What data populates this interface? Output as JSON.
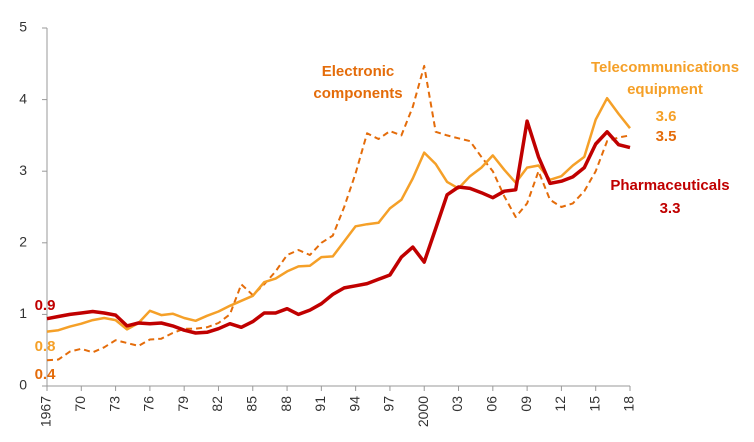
{
  "chart_data": {
    "type": "line",
    "x": [
      1967,
      1968,
      1969,
      1970,
      1971,
      1972,
      1973,
      1974,
      1975,
      1976,
      1977,
      1978,
      1979,
      1980,
      1981,
      1982,
      1983,
      1984,
      1985,
      1986,
      1987,
      1988,
      1989,
      1990,
      1991,
      1992,
      1993,
      1994,
      1995,
      1996,
      1997,
      1998,
      1999,
      2000,
      2001,
      2002,
      2003,
      2004,
      2005,
      2006,
      2007,
      2008,
      2009,
      2010,
      2011,
      2012,
      2013,
      2014,
      2015,
      2016,
      2017,
      2018
    ],
    "series": [
      {
        "name": "Electronic components",
        "color": "#e46c0a",
        "dashed": true,
        "values": [
          0.36,
          0.37,
          0.48,
          0.52,
          0.47,
          0.54,
          0.64,
          0.6,
          0.56,
          0.65,
          0.66,
          0.74,
          0.8,
          0.8,
          0.82,
          0.88,
          1.0,
          1.42,
          1.27,
          1.42,
          1.6,
          1.83,
          1.9,
          1.83,
          2.0,
          2.1,
          2.5,
          2.97,
          3.53,
          3.45,
          3.56,
          3.5,
          3.9,
          4.47,
          3.55,
          3.5,
          3.46,
          3.42,
          3.2,
          3.0,
          2.65,
          2.36,
          2.55,
          3.0,
          2.6,
          2.5,
          2.55,
          2.72,
          3.0,
          3.42,
          3.47,
          3.5
        ],
        "value_labels": [
          "0.4",
          null,
          null,
          null,
          null,
          null,
          null,
          null,
          null,
          null,
          null,
          null,
          null,
          null,
          null,
          null,
          null,
          null,
          null,
          null,
          null,
          null,
          null,
          null,
          null,
          null,
          null,
          null,
          null,
          null,
          null,
          null,
          null,
          null,
          null,
          null,
          null,
          null,
          null,
          null,
          null,
          null,
          null,
          null,
          null,
          null,
          null,
          null,
          null,
          null,
          null,
          "3.5"
        ]
      },
      {
        "name": "Telecommunications equipment",
        "color": "#f5a028",
        "dashed": false,
        "values": [
          0.76,
          0.78,
          0.83,
          0.87,
          0.92,
          0.95,
          0.92,
          0.79,
          0.88,
          1.05,
          0.99,
          1.01,
          0.95,
          0.91,
          0.98,
          1.04,
          1.12,
          1.19,
          1.26,
          1.45,
          1.5,
          1.6,
          1.67,
          1.68,
          1.8,
          1.81,
          2.02,
          2.23,
          2.26,
          2.28,
          2.48,
          2.6,
          2.9,
          3.26,
          3.1,
          2.85,
          2.76,
          2.93,
          3.05,
          3.22,
          3.02,
          2.84,
          3.05,
          3.08,
          2.88,
          2.93,
          3.08,
          3.2,
          3.72,
          4.02,
          3.8,
          3.6
        ],
        "value_labels": [
          "0.8",
          null,
          null,
          null,
          null,
          null,
          null,
          null,
          null,
          null,
          null,
          null,
          null,
          null,
          null,
          null,
          null,
          null,
          null,
          null,
          null,
          null,
          null,
          null,
          null,
          null,
          null,
          null,
          null,
          null,
          null,
          null,
          null,
          null,
          null,
          null,
          null,
          null,
          null,
          null,
          null,
          null,
          null,
          null,
          null,
          null,
          null,
          null,
          null,
          null,
          null,
          "3.6"
        ]
      },
      {
        "name": "Pharmaceuticals",
        "color": "#c00000",
        "dashed": false,
        "values": [
          0.94,
          0.97,
          1.0,
          1.02,
          1.04,
          1.02,
          0.99,
          0.84,
          0.88,
          0.87,
          0.88,
          0.84,
          0.78,
          0.74,
          0.75,
          0.8,
          0.87,
          0.82,
          0.9,
          1.02,
          1.02,
          1.08,
          1.0,
          1.06,
          1.15,
          1.28,
          1.37,
          1.4,
          1.43,
          1.49,
          1.55,
          1.8,
          1.94,
          1.73,
          2.2,
          2.67,
          2.78,
          2.76,
          2.7,
          2.63,
          2.72,
          2.74,
          3.7,
          3.2,
          2.83,
          2.86,
          2.92,
          3.05,
          3.38,
          3.55,
          3.37,
          3.33
        ],
        "value_labels": [
          "0.9",
          null,
          null,
          null,
          null,
          null,
          null,
          null,
          null,
          null,
          null,
          null,
          null,
          null,
          null,
          null,
          null,
          null,
          null,
          null,
          null,
          null,
          null,
          null,
          null,
          null,
          null,
          null,
          null,
          null,
          null,
          null,
          null,
          null,
          null,
          null,
          null,
          null,
          null,
          null,
          null,
          null,
          null,
          null,
          null,
          null,
          null,
          null,
          null,
          null,
          null,
          "3.3"
        ]
      }
    ],
    "xlim": [
      1967,
      2018
    ],
    "xticks": [
      1967,
      {
        "value": 1970,
        "label": "70"
      },
      {
        "value": 1973,
        "label": "73"
      },
      {
        "value": 1976,
        "label": "76"
      },
      {
        "value": 1979,
        "label": "79"
      },
      {
        "value": 1982,
        "label": "82"
      },
      {
        "value": 1985,
        "label": "85"
      },
      {
        "value": 1988,
        "label": "88"
      },
      {
        "value": 1991,
        "label": "91"
      },
      {
        "value": 1994,
        "label": "94"
      },
      {
        "value": 1997,
        "label": "97"
      },
      2000,
      {
        "value": 2003,
        "label": "03"
      },
      {
        "value": 2006,
        "label": "06"
      },
      {
        "value": 2009,
        "label": "09"
      },
      {
        "value": 2012,
        "label": "12"
      },
      {
        "value": 2015,
        "label": "15"
      },
      {
        "value": 2018,
        "label": "18"
      }
    ],
    "ylim": [
      0,
      5
    ],
    "yticks": [
      0,
      1,
      2,
      3,
      4,
      5
    ],
    "grid": false
  }
}
